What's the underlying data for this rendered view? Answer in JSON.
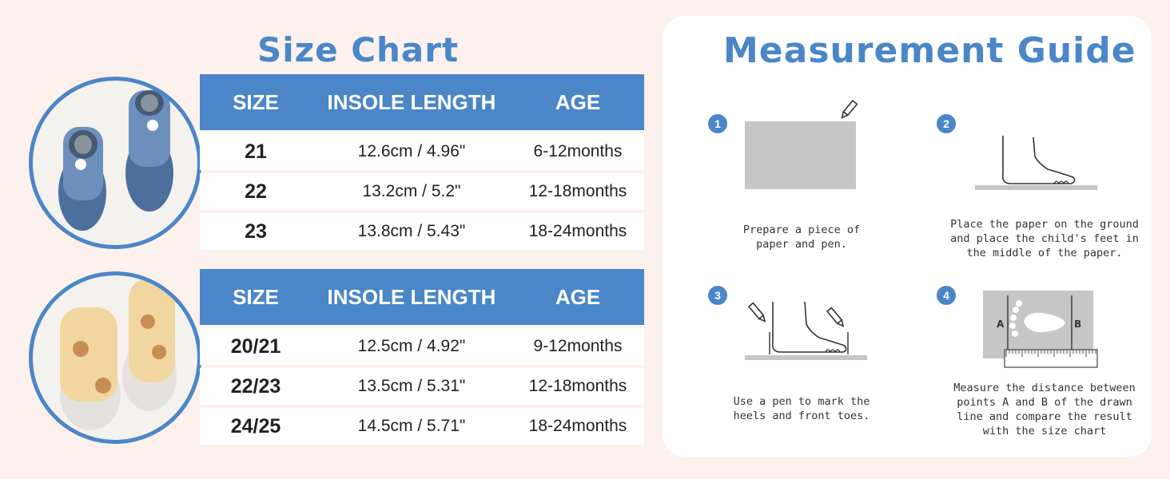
{
  "size_chart": {
    "title": "Size Chart",
    "tables": [
      {
        "headers": [
          "SIZE",
          "INSOLE LENGTH",
          "AGE"
        ],
        "rows": [
          [
            "21",
            "12.6cm / 4.96\"",
            "6-12months"
          ],
          [
            "22",
            "13.2cm / 5.2\"",
            "12-18months"
          ],
          [
            "23",
            "13.8cm / 5.43\"",
            "18-24months"
          ]
        ]
      },
      {
        "headers": [
          "SIZE",
          "INSOLE LENGTH",
          "AGE"
        ],
        "rows": [
          [
            "20/21",
            "12.5cm / 4.92\"",
            "9-12months"
          ],
          [
            "22/23",
            "13.5cm / 5.31\"",
            "12-18months"
          ],
          [
            "24/25",
            "14.5cm / 5.71\"",
            "18-24months"
          ]
        ]
      }
    ]
  },
  "guide": {
    "title": "Measurement Guide",
    "steps": [
      {
        "num": "1",
        "text": "Prepare a piece of\npaper and pen."
      },
      {
        "num": "2",
        "text": "Place the paper on the ground\nand place the child's feet in\nthe middle of the paper."
      },
      {
        "num": "3",
        "text": "Use a pen to mark the\nheels and front toes."
      },
      {
        "num": "4",
        "text": "Measure the distance between\npoints A and B of the drawn\nline and compare the result\nwith the size chart",
        "label_a": "A",
        "label_b": "B"
      }
    ]
  },
  "colors": {
    "accent": "#4a86c8",
    "background": "#fcf1ec",
    "panel": "#ffffff"
  },
  "icons": [
    "pencil-icon",
    "foot-icon",
    "ruler-icon",
    "footprint-icon"
  ]
}
